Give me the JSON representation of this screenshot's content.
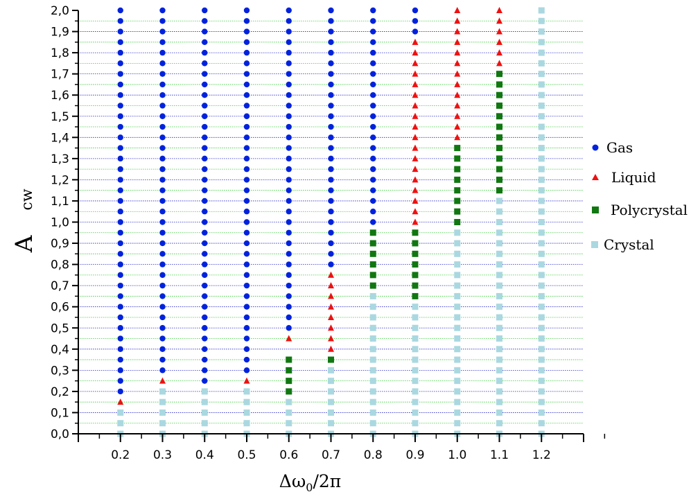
{
  "chart_data": {
    "type": "scatter",
    "title": "",
    "xlabel": "Δω₀/2π",
    "ylabel": "A_cw",
    "xlabel_parts": {
      "main": "Δω",
      "sub": "0",
      "tail": "/2π"
    },
    "ylabel_parts": {
      "main": "A",
      "sub": "cw"
    },
    "xlim": [
      0.1,
      1.3
    ],
    "ylim": [
      0.0,
      2.0
    ],
    "x_ticks": [
      0.2,
      0.3,
      0.4,
      0.5,
      0.6,
      0.7,
      0.8,
      0.9,
      1.0,
      1.1,
      1.2
    ],
    "x_tick_labels": [
      "0.2",
      "0.3",
      "0.4",
      "0.5",
      "0.6",
      "0.7",
      "0.8",
      "0.9",
      "1.0",
      "1.1",
      "1.2"
    ],
    "y_ticks": [
      0.0,
      0.1,
      0.2,
      0.3,
      0.4,
      0.5,
      0.6,
      0.7,
      0.8,
      0.9,
      1.0,
      1.1,
      1.2,
      1.3,
      1.4,
      1.5,
      1.6,
      1.7,
      1.8,
      1.9,
      2.0
    ],
    "y_tick_labels": [
      "0,0",
      "0,1",
      "0,2",
      "0,3",
      "0,4",
      "0,5",
      "0,6",
      "0,7",
      "0,8",
      "0,9",
      "1,0",
      "1,1",
      "1,2",
      "1,3",
      "1,4",
      "1,5",
      "1,6",
      "1,7",
      "1,8",
      "1,9",
      "2,0"
    ],
    "grid": true,
    "grid_colors": {
      "major": "#2222cc",
      "minor": "#33cc33"
    },
    "legend_position": "right",
    "y_step": 0.05,
    "series": [
      {
        "name": "Gas",
        "marker": "circle",
        "color": "#0022dd",
        "ranges": [
          [
            0.2,
            0.2,
            2.0
          ],
          [
            0.3,
            0.3,
            2.0
          ],
          [
            0.4,
            0.25,
            2.0
          ],
          [
            0.5,
            0.3,
            2.0
          ],
          [
            0.6,
            0.5,
            2.0
          ],
          [
            0.7,
            0.8,
            2.0
          ],
          [
            0.8,
            1.0,
            2.0
          ],
          [
            0.9,
            1.9,
            2.0
          ]
        ]
      },
      {
        "name": "Liquid",
        "marker": "triangle",
        "color": "#ee1111",
        "ranges": [
          [
            0.2,
            0.15,
            0.15
          ],
          [
            0.3,
            0.25,
            0.25
          ],
          [
            0.5,
            0.25,
            0.25
          ],
          [
            0.6,
            0.45,
            0.45
          ],
          [
            0.7,
            0.4,
            0.75
          ],
          [
            0.9,
            1.0,
            1.85
          ],
          [
            1.0,
            1.4,
            2.0
          ],
          [
            1.1,
            1.75,
            2.0
          ]
        ]
      },
      {
        "name": "Polycrystal",
        "marker": "square",
        "color": "#117711",
        "ranges": [
          [
            0.6,
            0.2,
            0.35
          ],
          [
            0.7,
            0.35,
            0.35
          ],
          [
            0.8,
            0.7,
            0.95
          ],
          [
            0.9,
            0.65,
            0.95
          ],
          [
            1.0,
            1.0,
            1.35
          ],
          [
            1.1,
            1.15,
            1.7
          ]
        ]
      },
      {
        "name": "Crystal",
        "marker": "square",
        "color": "#aad8e0",
        "ranges": [
          [
            0.2,
            0.0,
            0.1
          ],
          [
            0.3,
            0.0,
            0.2
          ],
          [
            0.4,
            0.0,
            0.2
          ],
          [
            0.5,
            0.0,
            0.2
          ],
          [
            0.6,
            0.0,
            0.15
          ],
          [
            0.7,
            0.0,
            0.3
          ],
          [
            0.8,
            0.0,
            0.65
          ],
          [
            0.9,
            0.0,
            0.6
          ],
          [
            1.0,
            0.0,
            0.95
          ],
          [
            1.1,
            0.0,
            1.1
          ],
          [
            1.2,
            0.0,
            2.0
          ]
        ]
      }
    ]
  }
}
